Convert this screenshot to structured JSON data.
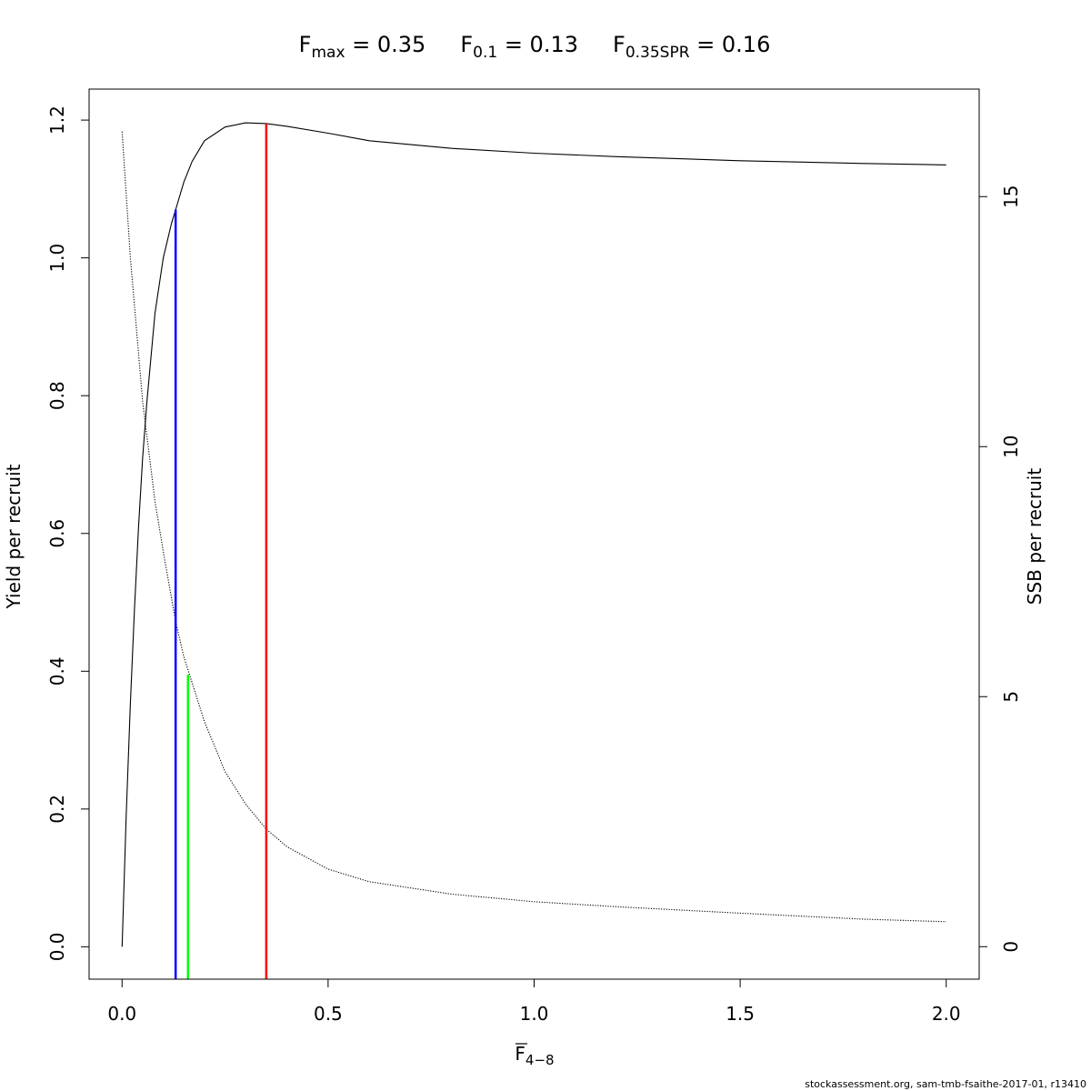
{
  "chart_data": {
    "type": "line",
    "title_parts": [
      {
        "main": "F",
        "sub": "max",
        "value": " = 0.35"
      },
      {
        "main": "F",
        "sub": "0.1",
        "value": " = 0.13"
      },
      {
        "main": "F",
        "sub": "0.35SPR",
        "value": " = 0.16"
      }
    ],
    "xlabel": {
      "main": "F",
      "sub": "4−8"
    },
    "ylabel_left": "Yield per recruit",
    "ylabel_right": "SSB per recruit",
    "xlim": [
      -0.08,
      2.08
    ],
    "ylim_left": [
      -0.047,
      1.245
    ],
    "ylim_right": [
      -0.65,
      17.15
    ],
    "x_ticks": [
      0,
      0.5,
      1,
      1.5,
      2
    ],
    "x_tick_labels": [
      "0.0",
      "0.5",
      "1.0",
      "1.5",
      "2.0"
    ],
    "y_left_ticks": [
      0,
      0.2,
      0.4,
      0.6,
      0.8,
      1.0,
      1.2
    ],
    "y_left_tick_labels": [
      "0.0",
      "0.2",
      "0.4",
      "0.6",
      "0.8",
      "1.0",
      "1.2"
    ],
    "y_right_ticks": [
      0,
      5,
      10,
      15
    ],
    "y_right_tick_labels": [
      "0",
      "5",
      "10",
      "15"
    ],
    "series": [
      {
        "axis": "left",
        "style": "solid",
        "color": "#000000",
        "x": [
          0,
          0.01,
          0.02,
          0.03,
          0.04,
          0.05,
          0.06,
          0.08,
          0.1,
          0.12,
          0.13,
          0.15,
          0.17,
          0.2,
          0.25,
          0.3,
          0.35,
          0.4,
          0.5,
          0.6,
          0.8,
          1.0,
          1.2,
          1.5,
          1.8,
          2.0
        ],
        "values": [
          0.0,
          0.19,
          0.35,
          0.49,
          0.61,
          0.71,
          0.79,
          0.92,
          1.0,
          1.05,
          1.07,
          1.11,
          1.14,
          1.17,
          1.19,
          1.196,
          1.195,
          1.191,
          1.181,
          1.17,
          1.159,
          1.152,
          1.147,
          1.141,
          1.137,
          1.135
        ]
      },
      {
        "axis": "right",
        "style": "dotted",
        "color": "#000000",
        "x": [
          0,
          0.02,
          0.05,
          0.08,
          0.1,
          0.13,
          0.15,
          0.2,
          0.25,
          0.3,
          0.35,
          0.4,
          0.5,
          0.6,
          0.8,
          1.0,
          1.2,
          1.5,
          1.8,
          2.0
        ],
        "values": [
          16.3,
          13.8,
          10.9,
          8.9,
          7.9,
          6.5,
          5.8,
          4.5,
          3.5,
          2.85,
          2.35,
          2.0,
          1.55,
          1.3,
          1.05,
          0.9,
          0.8,
          0.67,
          0.55,
          0.5
        ]
      }
    ],
    "reference_lines": [
      {
        "name": "Fmax",
        "x": 0.35,
        "y_top": 1.195,
        "color": "#ff0000"
      },
      {
        "name": "F0.1",
        "x": 0.13,
        "y_top": 1.07,
        "color": "#0000ff"
      },
      {
        "name": "F0.35SPR",
        "x": 0.16,
        "y_top": 0.395,
        "color": "#00ff00"
      }
    ],
    "grid": false
  },
  "footer": "stockassessment.org, sam-tmb-fsaithe-2017-01, r13410"
}
